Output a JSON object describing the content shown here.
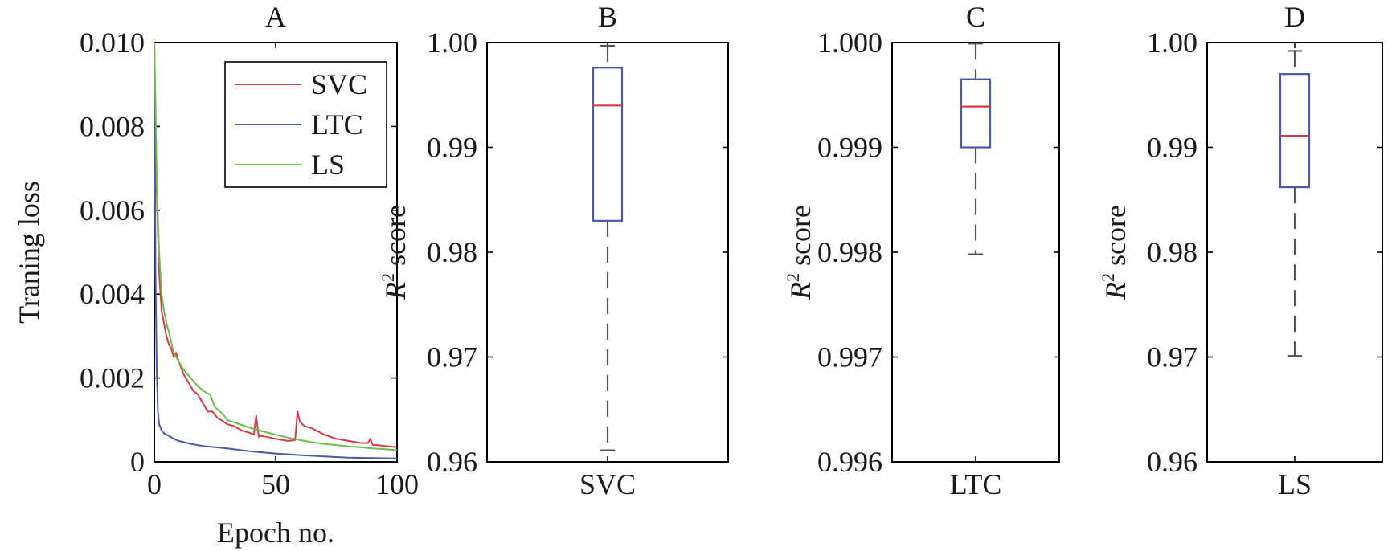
{
  "colors": {
    "svc": "#d93a49",
    "ltc": "#4b59a8",
    "ls": "#6cbf4b",
    "box_edge": "#4b59a8",
    "median": "#d93a49",
    "whisker": "#555555"
  },
  "chart_data": [
    {
      "panel": "A",
      "type": "line",
      "title": "A",
      "xlabel": "Epoch no.",
      "ylabel": "Traning loss",
      "xlim": [
        0,
        100
      ],
      "ylim": [
        0,
        0.01
      ],
      "xticks": [
        0,
        50,
        100
      ],
      "xtick_labels": [
        "0",
        "50",
        "100"
      ],
      "yticks": [
        0,
        0.002,
        0.004,
        0.006,
        0.008,
        0.01
      ],
      "ytick_labels": [
        "0",
        "0.002",
        "0.004",
        "0.006",
        "0.008",
        "0.010"
      ],
      "grid": false,
      "legend": "top-right",
      "series": [
        {
          "name": "SVC",
          "color_key": "svc",
          "x": [
            0,
            1,
            2,
            3,
            4,
            5,
            6,
            7,
            8,
            9,
            10,
            12,
            14,
            16,
            18,
            20,
            22,
            24,
            26,
            28,
            30,
            33,
            36,
            39,
            41,
            42,
            43,
            44,
            46,
            50,
            55,
            58,
            59,
            60,
            62,
            65,
            70,
            75,
            80,
            85,
            88,
            89,
            90,
            92,
            95,
            100
          ],
          "y": [
            0.01,
            0.0065,
            0.0045,
            0.0036,
            0.0033,
            0.003,
            0.0028,
            0.0027,
            0.0025,
            0.0026,
            0.0024,
            0.0021,
            0.0019,
            0.0017,
            0.0016,
            0.0014,
            0.0012,
            0.0012,
            0.00105,
            0.00098,
            0.0009,
            0.00085,
            0.00075,
            0.0007,
            0.00065,
            0.0011,
            0.0006,
            0.00062,
            0.0006,
            0.00055,
            0.0005,
            0.00052,
            0.0012,
            0.00095,
            0.00085,
            0.0008,
            0.00065,
            0.00055,
            0.0005,
            0.00045,
            0.00045,
            0.00055,
            0.0004,
            0.0004,
            0.00038,
            0.00035
          ]
        },
        {
          "name": "LTC",
          "color_key": "ltc",
          "x": [
            0,
            0.5,
            1,
            1.5,
            2,
            3,
            4,
            6,
            8,
            10,
            15,
            20,
            30,
            40,
            50,
            60,
            70,
            80,
            90,
            100
          ],
          "y": [
            0.01,
            0.0045,
            0.0022,
            0.0012,
            0.0009,
            0.00075,
            0.00068,
            0.00062,
            0.00055,
            0.0005,
            0.00043,
            0.00038,
            0.00032,
            0.00025,
            0.0002,
            0.00016,
            0.00013,
            0.0001,
            9e-05,
            8e-05
          ]
        },
        {
          "name": "LS",
          "color_key": "ls",
          "x": [
            0,
            0.5,
            1,
            1.5,
            2,
            3,
            4,
            5,
            6,
            8,
            10,
            12,
            15,
            18,
            20,
            23,
            25,
            28,
            30,
            35,
            40,
            45,
            50,
            55,
            60,
            65,
            70,
            75,
            80,
            85,
            90,
            95,
            100
          ],
          "y": [
            0.01,
            0.0085,
            0.0068,
            0.0058,
            0.005,
            0.004,
            0.0036,
            0.0033,
            0.0031,
            0.0026,
            0.0024,
            0.0022,
            0.002,
            0.0018,
            0.0017,
            0.0016,
            0.0013,
            0.00115,
            0.001,
            0.0009,
            0.0008,
            0.00072,
            0.00065,
            0.00058,
            0.00052,
            0.00047,
            0.00043,
            0.0004,
            0.00037,
            0.00035,
            0.00032,
            0.0003,
            0.00028
          ]
        }
      ]
    },
    {
      "panel": "B",
      "type": "box",
      "title": "B",
      "xlabel": "",
      "ylabel": "R",
      "ylabel_superscript": "2",
      "ylabel_rest": " score",
      "category": "SVC",
      "ylim": [
        0.96,
        1.0
      ],
      "yticks": [
        0.96,
        0.97,
        0.98,
        0.99,
        1.0
      ],
      "ytick_labels": [
        "0.96",
        "0.97",
        "0.98",
        "0.99",
        "1.00"
      ],
      "whisker_low": 0.9611,
      "q1": 0.983,
      "median": 0.994,
      "q3": 0.9976,
      "whisker_high": 0.9997
    },
    {
      "panel": "C",
      "type": "box",
      "title": "C",
      "xlabel": "",
      "ylabel": "R",
      "ylabel_superscript": "2",
      "ylabel_rest": " score",
      "category": "LTC",
      "ylim": [
        0.996,
        1.0
      ],
      "yticks": [
        0.996,
        0.997,
        0.998,
        0.999,
        1.0
      ],
      "ytick_labels": [
        "0.996",
        "0.997",
        "0.998",
        "0.999",
        "1.000"
      ],
      "whisker_low": 0.99798,
      "q1": 0.999,
      "median": 0.99939,
      "q3": 0.99965,
      "whisker_high": 0.99999
    },
    {
      "panel": "D",
      "type": "box",
      "title": "D",
      "xlabel": "",
      "ylabel": "R",
      "ylabel_superscript": "2",
      "ylabel_rest": " score",
      "category": "LS",
      "ylim": [
        0.96,
        1.0
      ],
      "yticks": [
        0.96,
        0.97,
        0.98,
        0.99,
        1.0
      ],
      "ytick_labels": [
        "0.96",
        "0.97",
        "0.98",
        "0.99",
        "1.00"
      ],
      "whisker_low": 0.9701,
      "q1": 0.9862,
      "median": 0.9911,
      "q3": 0.997,
      "whisker_high": 0.9992
    }
  ]
}
